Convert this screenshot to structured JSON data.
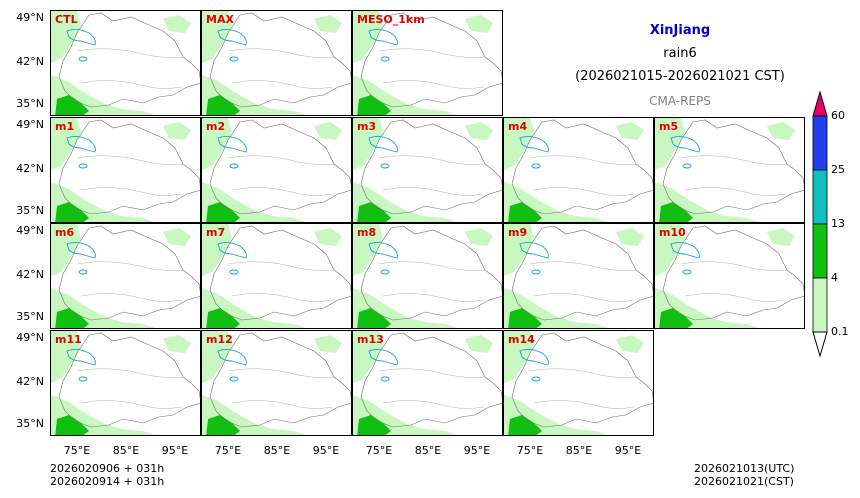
{
  "header": {
    "region": "XinJiang",
    "variable": "rain6",
    "period": "(2026021015-2026021021 CST)",
    "source": "CMA-REPS",
    "region_color": "#0000cc",
    "source_color": "#808080"
  },
  "panels": [
    "CTL",
    "MAX",
    "MESO_1km",
    "m1",
    "m2",
    "m3",
    "m4",
    "m5",
    "m6",
    "m7",
    "m8",
    "m9",
    "m10",
    "m11",
    "m12",
    "m13",
    "m14"
  ],
  "panel_label_color": "#e00000",
  "y_ticks": [
    "49°N",
    "42°N",
    "35°N"
  ],
  "x_ticks": [
    "75°E",
    "85°E",
    "95°E"
  ],
  "colorbar": {
    "levels": [
      "60",
      "25",
      "13",
      "4",
      "0.1"
    ],
    "colors": [
      "#e8006a",
      "#2040f0",
      "#10c0c0",
      "#10c010",
      "#c8f8c0"
    ]
  },
  "footer_left": [
    "2026020906  +  031h",
    "2026020914  +  031h"
  ],
  "footer_right": [
    "2026021013(UTC)",
    "2026021021(CST)"
  ]
}
